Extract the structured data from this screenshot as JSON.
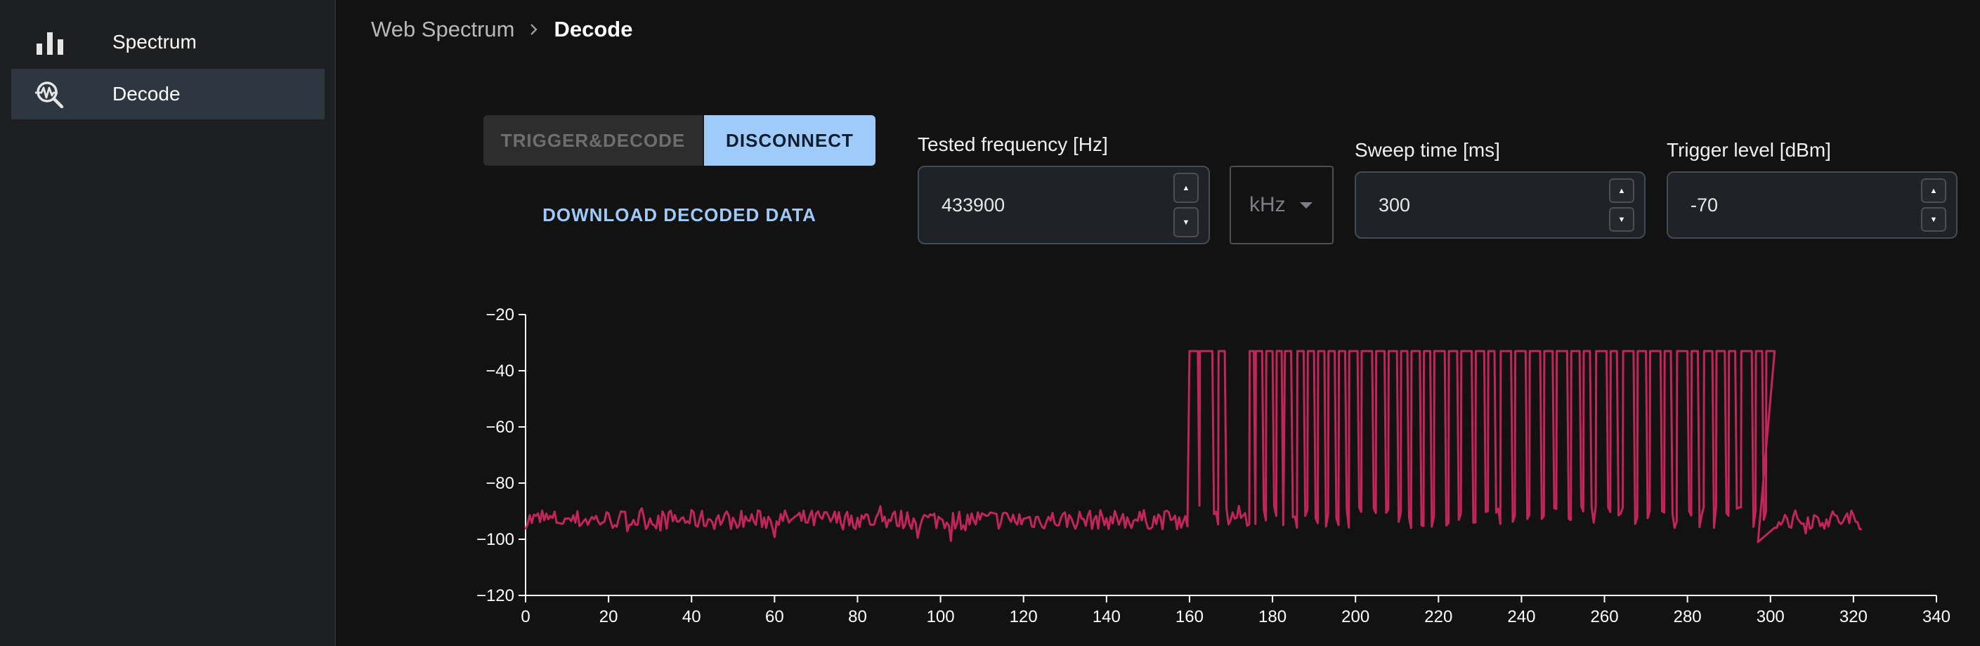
{
  "sidebar": {
    "items": [
      {
        "label": "Spectrum",
        "icon": "bar-chart-icon",
        "active": false
      },
      {
        "label": "Decode",
        "icon": "signal-search-icon",
        "active": true
      }
    ]
  },
  "breadcrumb": {
    "root": "Web Spectrum",
    "current": "Decode"
  },
  "buttons": {
    "trigger_label": "TRIGGER&DECODE",
    "disconnect_label": "DISCONNECT",
    "download_label": "DOWNLOAD DECODED DATA"
  },
  "fields": {
    "frequency": {
      "label": "Tested frequency [Hz]",
      "value": "433900"
    },
    "unit": {
      "selected": "kHz"
    },
    "sweep": {
      "label": "Sweep time [ms]",
      "value": "300"
    },
    "trigger": {
      "label": "Trigger level [dBm]",
      "value": "-70"
    }
  },
  "colors": {
    "accent": "#9ecbfa",
    "signal": "#c2255c",
    "background": "#121212"
  },
  "chart_data": {
    "type": "line",
    "xlim": [
      0,
      340
    ],
    "ylim": [
      -120,
      -20
    ],
    "x_ticks": [
      0,
      20,
      40,
      60,
      80,
      100,
      120,
      140,
      160,
      180,
      200,
      220,
      240,
      260,
      280,
      300,
      320,
      340
    ],
    "y_ticks": [
      -120,
      -100,
      -80,
      -60,
      -40,
      -20
    ],
    "x_tick_labels": [
      "0",
      "20",
      "40",
      "60",
      "80",
      "100",
      "120",
      "140",
      "160",
      "180",
      "200",
      "220",
      "240",
      "260",
      "280",
      "300",
      "320",
      "340"
    ],
    "y_tick_labels": [
      "−120",
      "−100",
      "−80",
      "−60",
      "−40",
      "−20"
    ],
    "series": [
      {
        "noise_range": [
          0,
          160
        ],
        "burst_range": [
          160,
          301
        ],
        "tail_range": [
          301,
          322
        ],
        "noise_level": -93,
        "high_level": -33,
        "low_level": -92,
        "pulse_starts": [
          160,
          162.5,
          167,
          174.5,
          176,
          178.5,
          181,
          183,
          186,
          188.5,
          191,
          193.5,
          196,
          198.5,
          201.5,
          205,
          208,
          211,
          213.5,
          216.5,
          219,
          222.5,
          225.5,
          229,
          232,
          235,
          238.5,
          242,
          245.5,
          248.5,
          252,
          255,
          258,
          261.5,
          264.5,
          268,
          271,
          274.5,
          277.5,
          281,
          284,
          287,
          290,
          293,
          296.5,
          299
        ],
        "pulse_widths": [
          2,
          3,
          1.5,
          1,
          1.5,
          1.5,
          1.2,
          1.5,
          1.5,
          1.5,
          1.5,
          1.5,
          1.5,
          2,
          2.5,
          2,
          2,
          1.5,
          2,
          1.5,
          2.5,
          2,
          2.5,
          2,
          1.5,
          2.5,
          2.5,
          2.5,
          2,
          2.5,
          2,
          1.5,
          2.5,
          1.5,
          2.5,
          2,
          2.5,
          1.5,
          2.5,
          1.5,
          2,
          2,
          1.5,
          2.5,
          1.5,
          2
        ]
      }
    ]
  }
}
